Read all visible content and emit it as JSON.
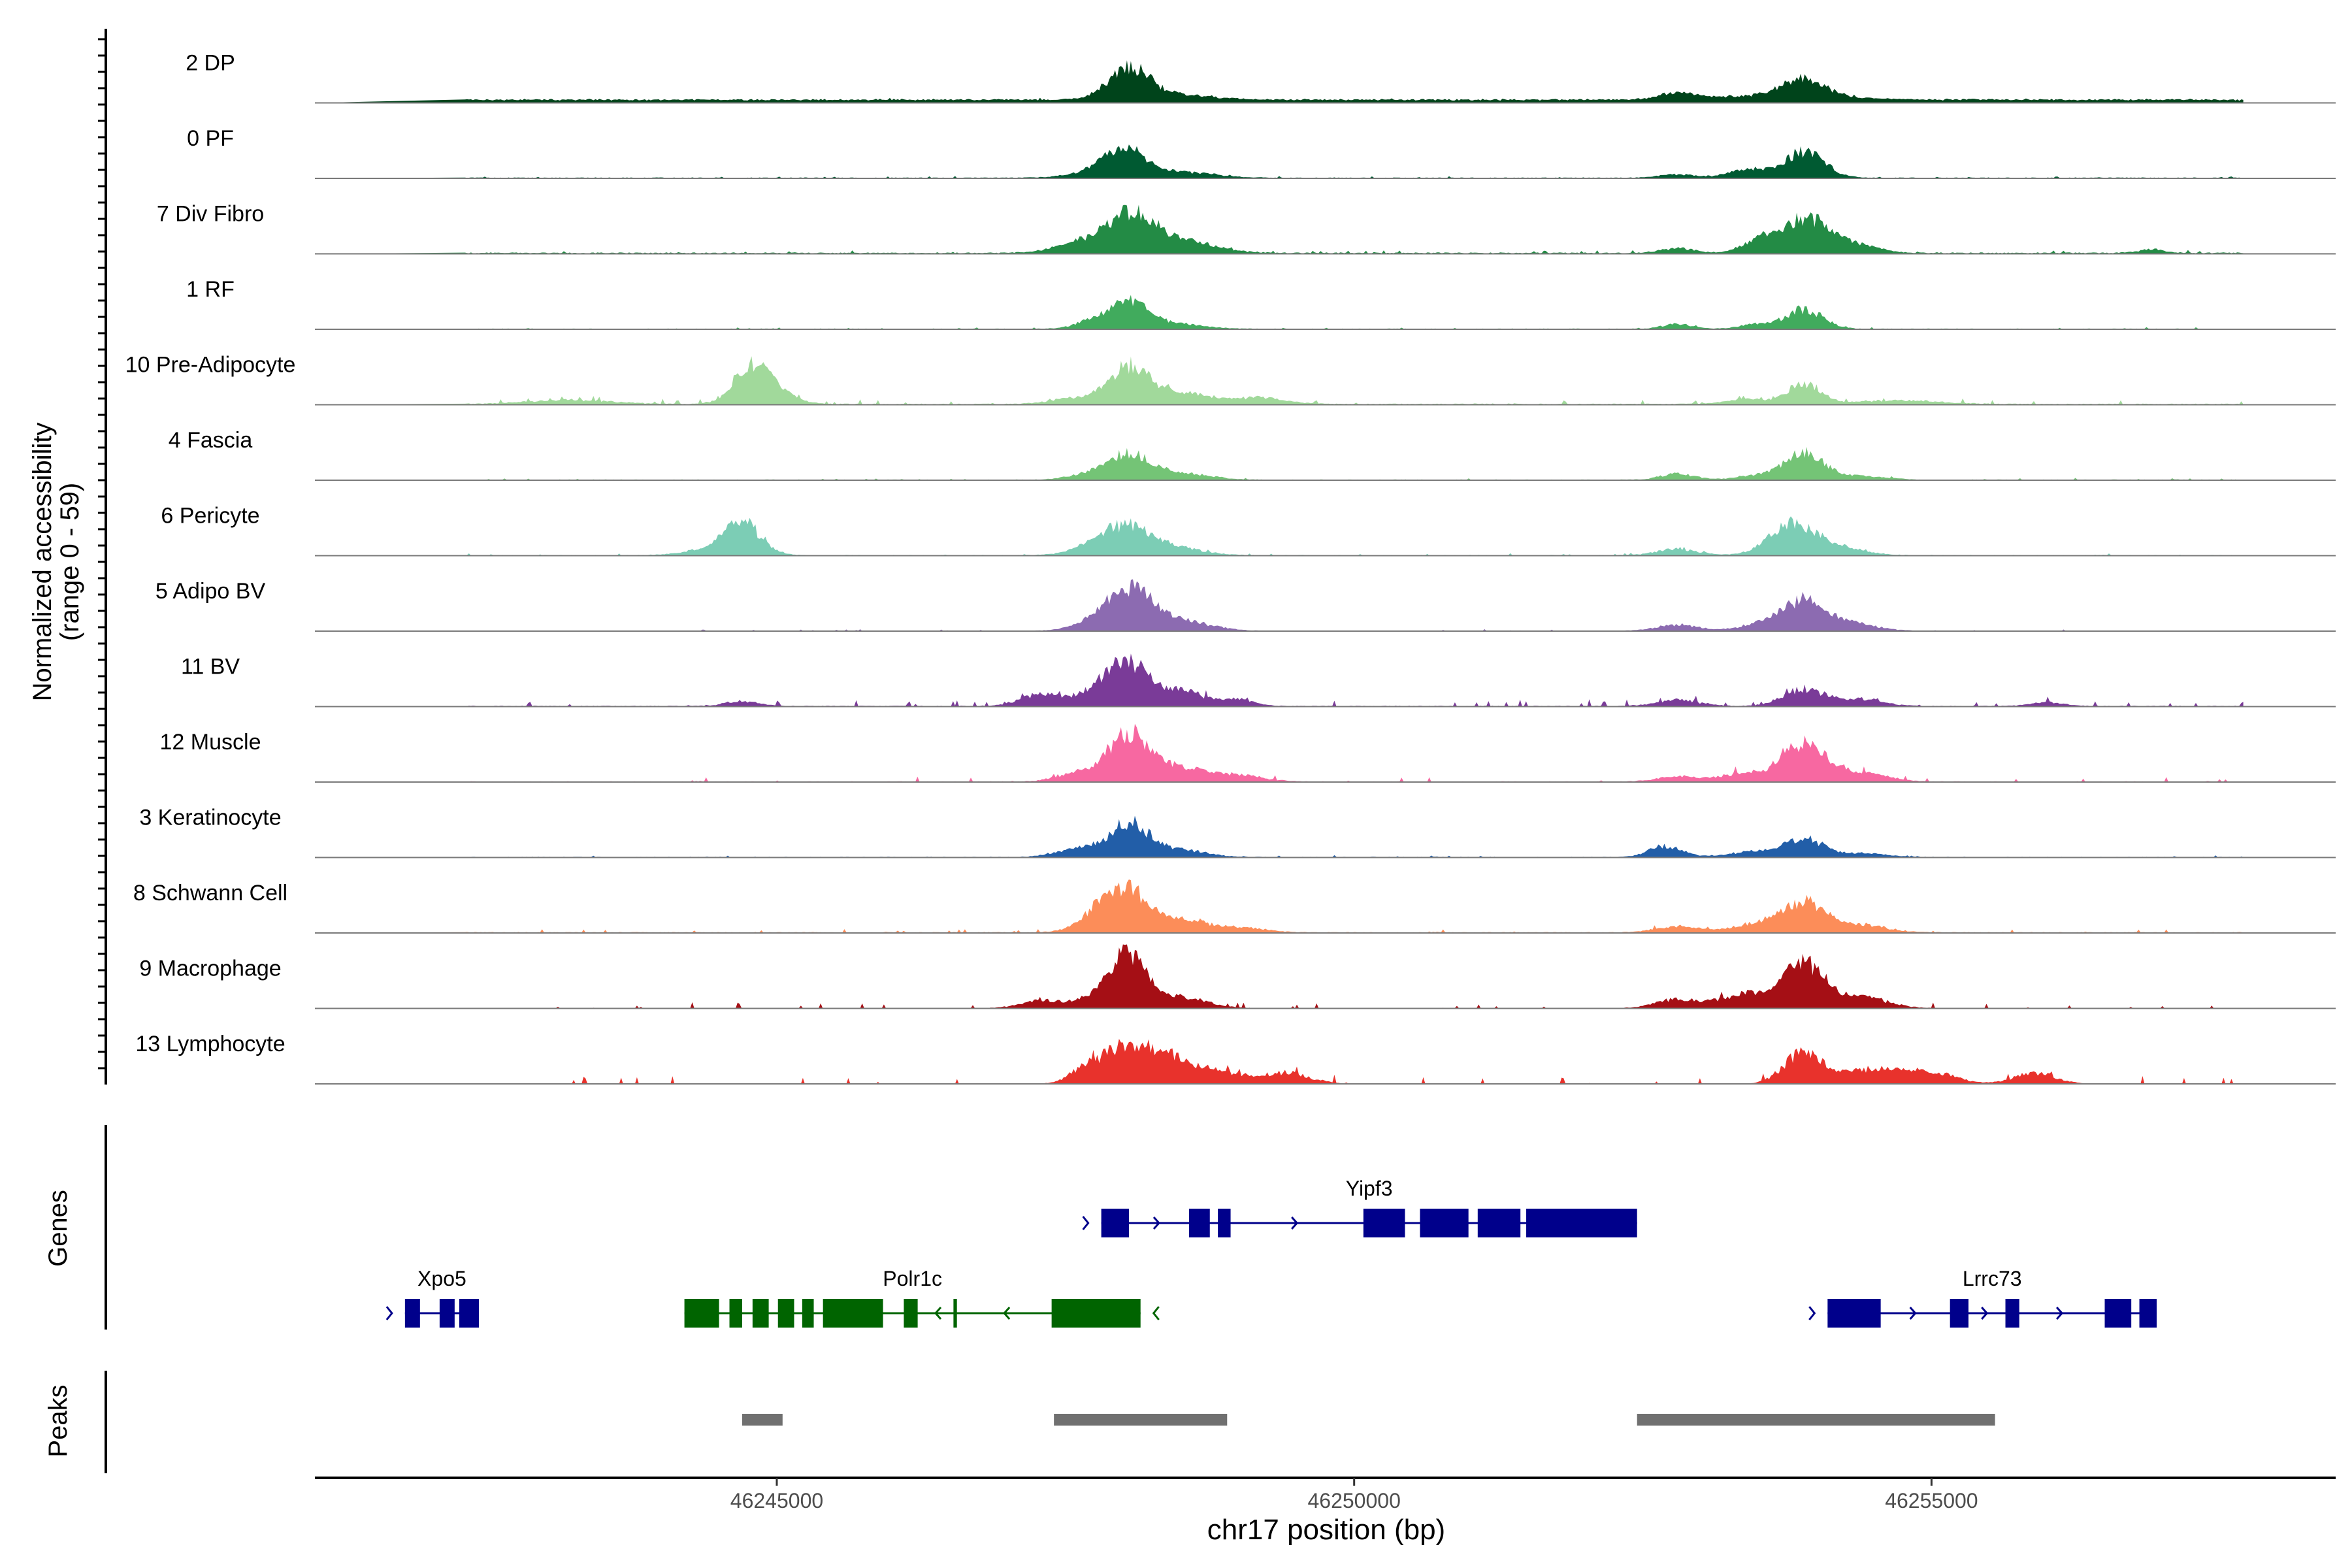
{
  "chart_data": {
    "type": "area",
    "title": "",
    "y_axis_label": "Normalized accessibility",
    "y_axis_range_label": "(range 0 - 59)",
    "y_range": [
      0,
      59
    ],
    "x_axis_label": "chr17 position (bp)",
    "x_range": [
      46241000,
      46258500
    ],
    "x_ticks": [
      {
        "value": 46245000,
        "label": "46245000"
      },
      {
        "value": 46250000,
        "label": "46250000"
      },
      {
        "value": 46255000,
        "label": "46255000"
      }
    ],
    "tracks": [
      {
        "label": "2 DP",
        "color": "#00441b",
        "baseline": 1.2,
        "noise": 0.6,
        "peaks": [
          [
            46247200,
            46248200,
            4
          ],
          [
            46248050,
            250,
            52
          ],
          [
            46248500,
            400,
            8
          ],
          [
            46252800,
            200,
            10
          ],
          [
            46253900,
            260,
            30
          ],
          [
            46253600,
            800,
            7
          ]
        ]
      },
      {
        "label": "0 PF",
        "color": "#005a32",
        "baseline": 1.0,
        "noise": 0.6,
        "peaks": [
          [
            46247600,
            250,
            5
          ],
          [
            46248000,
            260,
            46
          ],
          [
            46248500,
            400,
            9
          ],
          [
            46252800,
            200,
            6
          ],
          [
            46253400,
            220,
            14
          ],
          [
            46253900,
            240,
            44
          ]
        ]
      },
      {
        "label": "7 Div Fibro",
        "color": "#238b45",
        "baseline": 1.5,
        "noise": 1.0,
        "peaks": [
          [
            46241500,
            150,
            5
          ],
          [
            46247600,
            300,
            14
          ],
          [
            46248050,
            300,
            60
          ],
          [
            46248500,
            400,
            20
          ],
          [
            46252800,
            200,
            8
          ],
          [
            46253500,
            200,
            20
          ],
          [
            46253900,
            280,
            55
          ],
          [
            46254300,
            300,
            14
          ],
          [
            46256900,
            150,
            6
          ]
        ]
      },
      {
        "label": "1 RF",
        "color": "#41ab5d",
        "baseline": 0.8,
        "noise": 0.6,
        "peaks": [
          [
            46247700,
            200,
            10
          ],
          [
            46248050,
            240,
            45
          ],
          [
            46248500,
            300,
            8
          ],
          [
            46252800,
            180,
            8
          ],
          [
            46253500,
            200,
            8
          ],
          [
            46253900,
            220,
            32
          ]
        ]
      },
      {
        "label": "10 Pre-Adipocyte",
        "color": "#a1d99b",
        "baseline": 1.2,
        "noise": 1.8,
        "peaks": [
          [
            46243200,
            500,
            7
          ],
          [
            46244800,
            230,
            62
          ],
          [
            46245100,
            200,
            8
          ],
          [
            46247600,
            300,
            10
          ],
          [
            46248050,
            240,
            58
          ],
          [
            46248500,
            400,
            18
          ],
          [
            46249200,
            300,
            10
          ],
          [
            46253400,
            250,
            8
          ],
          [
            46253900,
            200,
            34
          ],
          [
            46254700,
            500,
            6
          ]
        ]
      },
      {
        "label": "4 Fascia",
        "color": "#74c476",
        "baseline": 0.8,
        "noise": 0.6,
        "peaks": [
          [
            46247700,
            250,
            8
          ],
          [
            46248050,
            260,
            40
          ],
          [
            46248500,
            350,
            10
          ],
          [
            46252800,
            200,
            10
          ],
          [
            46253500,
            250,
            8
          ],
          [
            46253900,
            230,
            45
          ],
          [
            46254400,
            300,
            6
          ]
        ]
      },
      {
        "label": "6 Pericyte",
        "color": "#7ccdb5",
        "baseline": 0.8,
        "noise": 0.8,
        "peaks": [
          [
            46244700,
            230,
            52
          ],
          [
            46244400,
            300,
            8
          ],
          [
            46247800,
            300,
            14
          ],
          [
            46248050,
            300,
            42
          ],
          [
            46248500,
            300,
            10
          ],
          [
            46252800,
            250,
            10
          ],
          [
            46253800,
            280,
            50
          ],
          [
            46254200,
            300,
            12
          ]
        ]
      },
      {
        "label": "5 Adipo BV",
        "color": "#8c6bb1",
        "baseline": 0.6,
        "noise": 0.6,
        "peaks": [
          [
            46247700,
            250,
            8
          ],
          [
            46248050,
            280,
            68
          ],
          [
            46248500,
            350,
            16
          ],
          [
            46252800,
            250,
            10
          ],
          [
            46253500,
            250,
            10
          ],
          [
            46253900,
            260,
            50
          ],
          [
            46254300,
            300,
            12
          ]
        ]
      },
      {
        "label": "11 BV",
        "color": "#7a3b98",
        "baseline": 1.0,
        "noise": 2.5,
        "peaks": [
          [
            46247300,
            250,
            20
          ],
          [
            46247800,
            250,
            25
          ],
          [
            46248050,
            240,
            62
          ],
          [
            46248500,
            300,
            24
          ],
          [
            46249000,
            200,
            10
          ],
          [
            46244700,
            200,
            8
          ],
          [
            46252800,
            250,
            10
          ],
          [
            46253900,
            250,
            28
          ],
          [
            46254400,
            250,
            12
          ],
          [
            46256000,
            200,
            6
          ]
        ]
      },
      {
        "label": "12 Muscle",
        "color": "#f768a1",
        "baseline": 0.8,
        "noise": 2.0,
        "peaks": [
          [
            46247600,
            250,
            14
          ],
          [
            46248050,
            260,
            75
          ],
          [
            46248500,
            300,
            22
          ],
          [
            46249000,
            300,
            10
          ],
          [
            46252800,
            250,
            8
          ],
          [
            46253400,
            300,
            14
          ],
          [
            46253900,
            260,
            60
          ],
          [
            46254400,
            300,
            14
          ]
        ]
      },
      {
        "label": "3 Keratinocyte",
        "color": "#225ea8",
        "baseline": 0.8,
        "noise": 0.6,
        "peaks": [
          [
            46247600,
            250,
            14
          ],
          [
            46248050,
            240,
            55
          ],
          [
            46248500,
            300,
            12
          ],
          [
            46252700,
            200,
            18
          ],
          [
            46253500,
            300,
            10
          ],
          [
            46253900,
            220,
            30
          ],
          [
            46254400,
            300,
            6
          ]
        ]
      },
      {
        "label": "8 Schwann Cell",
        "color": "#fc8d59",
        "baseline": 1.0,
        "noise": 1.4,
        "peaks": [
          [
            46247800,
            250,
            30
          ],
          [
            46248050,
            260,
            60
          ],
          [
            46248500,
            300,
            20
          ],
          [
            46249000,
            300,
            8
          ],
          [
            46252800,
            250,
            10
          ],
          [
            46253500,
            300,
            14
          ],
          [
            46253900,
            260,
            48
          ],
          [
            46254400,
            300,
            12
          ]
        ]
      },
      {
        "label": "9 Macrophage",
        "color": "#a50f15",
        "baseline": 0.6,
        "noise": 2.2,
        "peaks": [
          [
            46247300,
            250,
            12
          ],
          [
            46247800,
            250,
            20
          ],
          [
            46248050,
            220,
            80
          ],
          [
            46248500,
            300,
            18
          ],
          [
            46252800,
            250,
            15
          ],
          [
            46253400,
            300,
            24
          ],
          [
            46253900,
            250,
            72
          ],
          [
            46254400,
            300,
            18
          ]
        ]
      },
      {
        "label": "13 Lymphocyte",
        "color": "#e8322c",
        "baseline": 0.0,
        "noise": 3.2,
        "peaks": [
          [
            46247700,
            200,
            28
          ],
          [
            46248050,
            260,
            60
          ],
          [
            46248400,
            250,
            38
          ],
          [
            46248800,
            300,
            20
          ],
          [
            46249400,
            300,
            18
          ],
          [
            46253900,
            240,
            52
          ],
          [
            46254500,
            350,
            24
          ],
          [
            46255000,
            300,
            18
          ],
          [
            46255900,
            250,
            18
          ]
        ]
      }
    ],
    "genes": [
      {
        "name": "Yipf3",
        "row": 0,
        "strand": "+",
        "color": "#00008b",
        "start": 46247800,
        "end": 46252450,
        "exons": [
          [
            46247810,
            46248050
          ],
          [
            46248570,
            46248750
          ],
          [
            46248820,
            46248930
          ],
          [
            46250080,
            46250440
          ],
          [
            46250570,
            46250990
          ],
          [
            46251070,
            46251440
          ],
          [
            46251490,
            46252450
          ]
        ]
      },
      {
        "name": "Xpo5",
        "row": 1,
        "strand": "+",
        "color": "#00008b",
        "start": 46241800,
        "end": 46242250,
        "exons": [
          [
            46241780,
            46241910
          ],
          [
            46242080,
            46242210
          ],
          [
            46242250,
            46242420
          ]
        ]
      },
      {
        "name": "Polr1c",
        "row": 1,
        "strand": "-",
        "color": "#006400",
        "start": 46244200,
        "end": 46248150,
        "exons": [
          [
            46244200,
            46244500
          ],
          [
            46244590,
            46244700
          ],
          [
            46244790,
            46244930
          ],
          [
            46245010,
            46245150
          ],
          [
            46245220,
            46245320
          ],
          [
            46245400,
            46245920
          ],
          [
            46246100,
            46246220
          ],
          [
            46246530,
            46246560
          ],
          [
            46247380,
            46248150
          ]
        ]
      },
      {
        "name": "Lrrc73",
        "row": 1,
        "strand": "+",
        "color": "#00008b",
        "start": 46254100,
        "end": 46256950,
        "exons": [
          [
            46254100,
            46254560
          ],
          [
            46255160,
            46255320
          ],
          [
            46255640,
            46255760
          ],
          [
            46256500,
            46256730
          ],
          [
            46256800,
            46256950
          ]
        ]
      }
    ],
    "peaks": [
      {
        "start": 46244700,
        "end": 46245050
      },
      {
        "start": 46247400,
        "end": 46248900
      },
      {
        "start": 46252450,
        "end": 46255550
      }
    ],
    "panel_labels": {
      "genes": "Genes",
      "peaks": "Peaks"
    }
  }
}
